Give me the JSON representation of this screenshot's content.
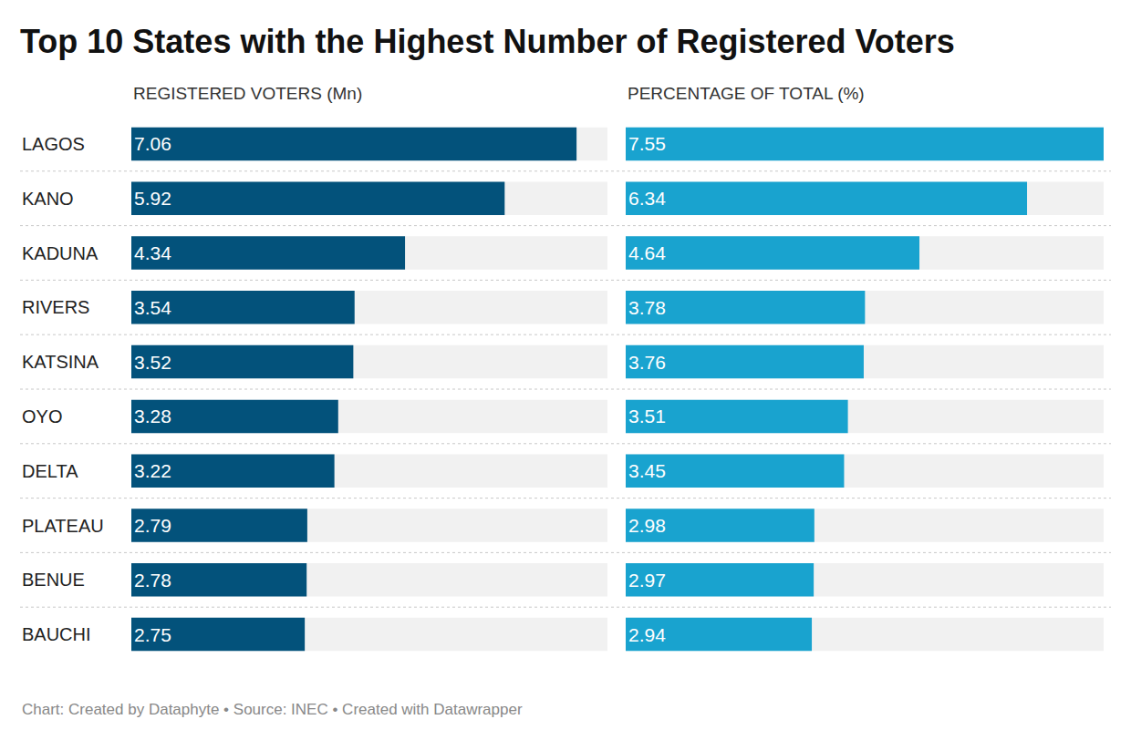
{
  "title": "Top 10 States with the Highest Number of Registered Voters",
  "note": "Chart: Created by Dataphyte • Source: INEC • Created with Datawrapper",
  "chart_data": [
    {
      "type": "bar",
      "title": "REGISTERED VOTERS (Mn)",
      "orientation": "horizontal",
      "categories": [
        "LAGOS",
        "KANO",
        "KADUNA",
        "RIVERS",
        "KATSINA",
        "OYO",
        "DELTA",
        "PLATEAU",
        "BENUE",
        "BAUCHI"
      ],
      "values": [
        7.06,
        5.92,
        4.34,
        3.54,
        3.52,
        3.28,
        3.22,
        2.79,
        2.78,
        2.75
      ],
      "color": "#03527b",
      "xlim": [
        0,
        7.55
      ],
      "xticks": [],
      "grid": false,
      "data_labels": true,
      "tick_labels": "y"
    },
    {
      "type": "bar",
      "title": "PERCENTAGE OF TOTAL (%)",
      "orientation": "horizontal",
      "categories": [
        "LAGOS",
        "KANO",
        "KADUNA",
        "RIVERS",
        "KATSINA",
        "OYO",
        "DELTA",
        "PLATEAU",
        "BENUE",
        "BAUCHI"
      ],
      "values": [
        7.55,
        6.34,
        4.64,
        3.78,
        3.76,
        3.51,
        3.45,
        2.98,
        2.97,
        2.94
      ],
      "color": "#19a3cf",
      "xlim": [
        0,
        7.55
      ],
      "xticks": [],
      "grid": false,
      "data_labels": true,
      "tick_labels": false
    }
  ]
}
